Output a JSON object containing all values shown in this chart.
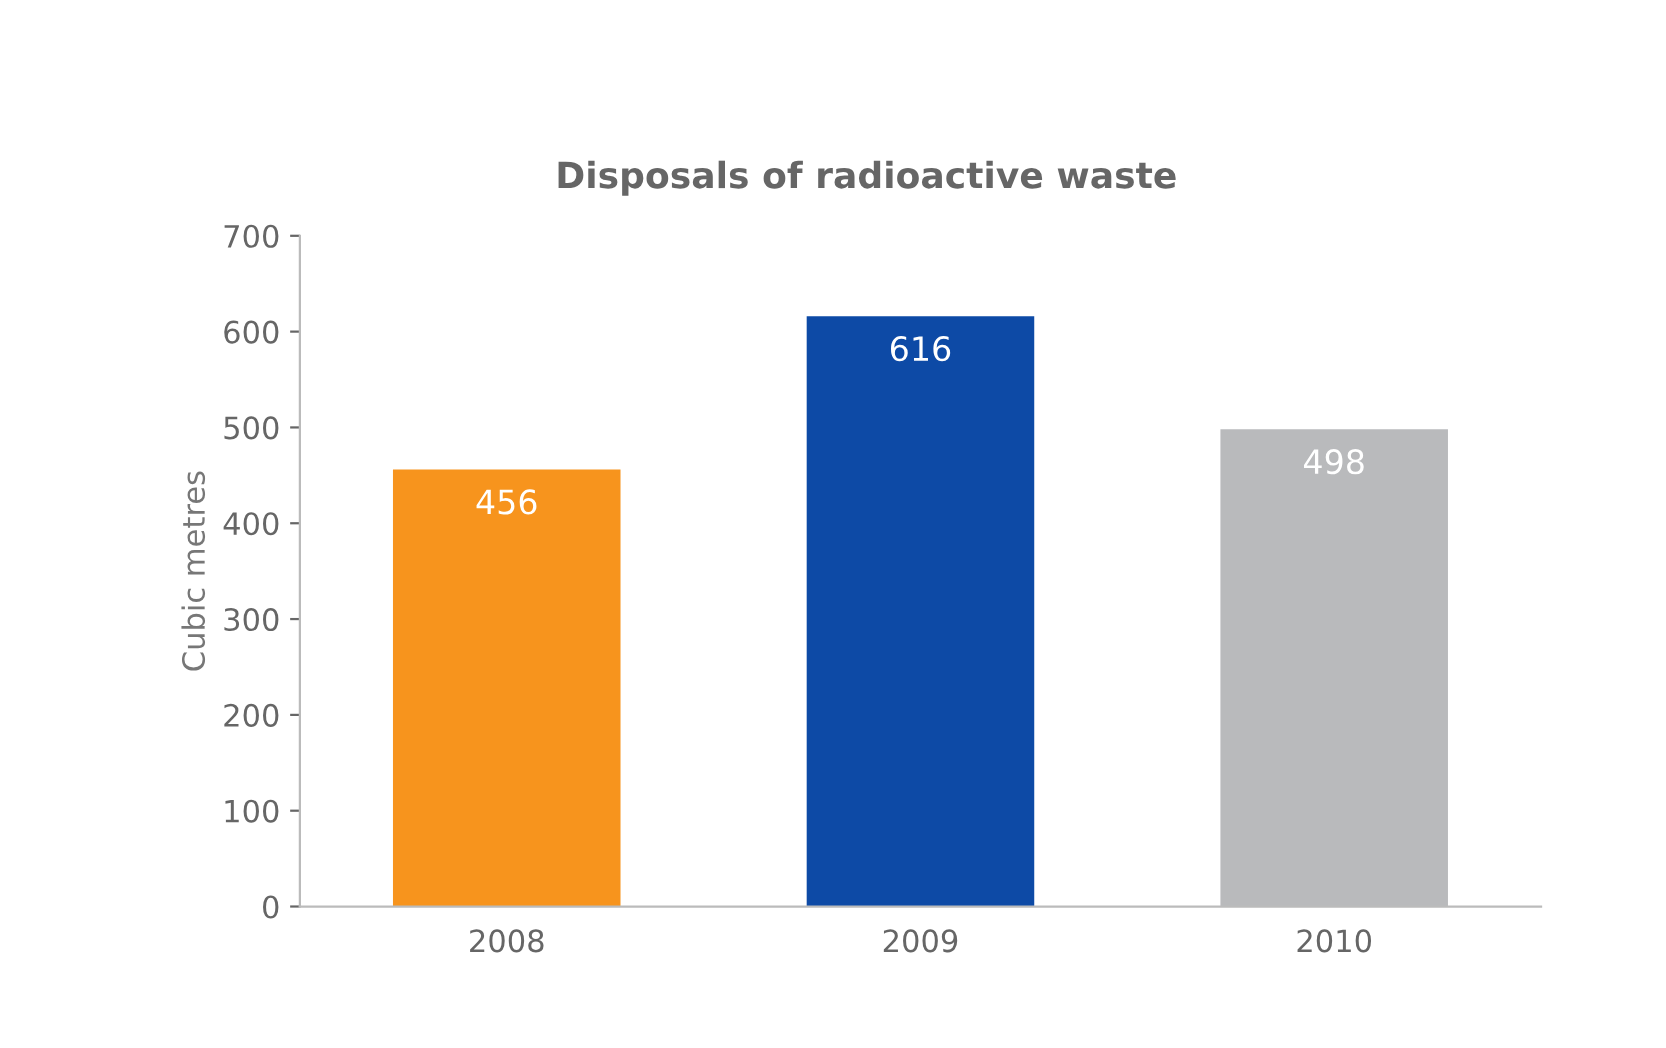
{
  "chart_data": {
    "type": "bar",
    "title": "Disposals of radioactive waste",
    "ylabel": "Cubic metres",
    "categories": [
      "2008",
      "2009",
      "2010"
    ],
    "values": [
      456,
      616,
      498
    ],
    "colors": [
      "#f7941d",
      "#0d4aa6",
      "#b9babc"
    ],
    "ylim": [
      0,
      700
    ],
    "yticks": [
      0,
      100,
      200,
      300,
      400,
      500,
      600,
      700
    ],
    "data_labels": true,
    "grid": false,
    "legend": false
  }
}
